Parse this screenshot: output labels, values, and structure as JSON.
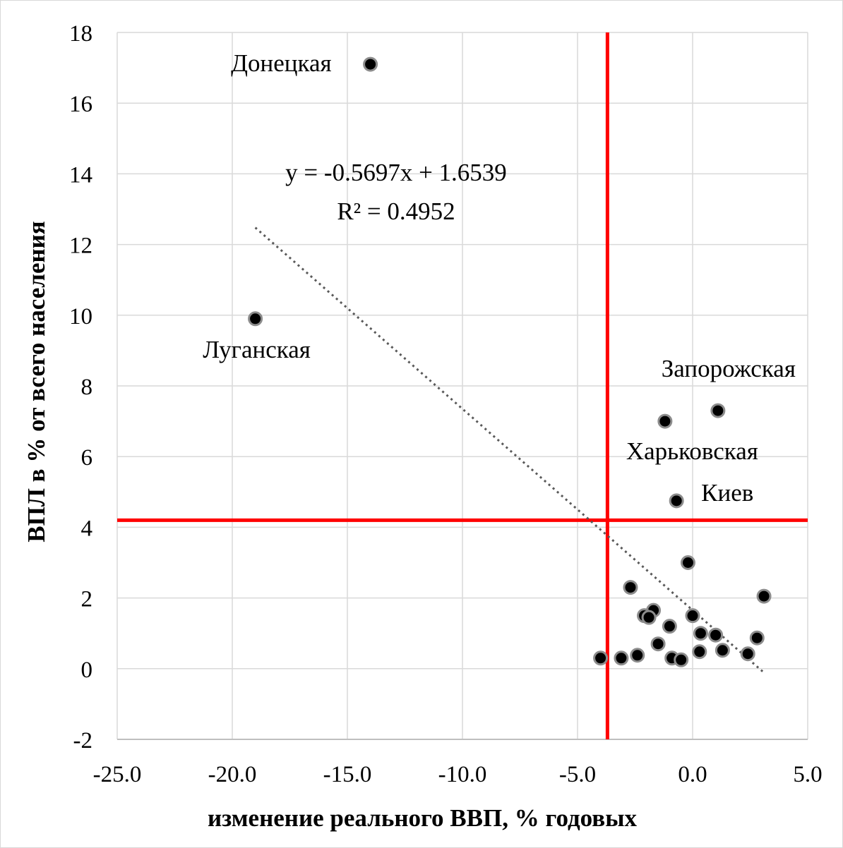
{
  "chart_data": {
    "type": "scatter",
    "xlabel": "изменение реального ВВП, % годовых",
    "ylabel": "ВПЛ в % от всего населения",
    "xlim": [
      -25,
      5
    ],
    "ylim": [
      -2,
      18
    ],
    "x_ticks": [
      "-25.0",
      "-20.0",
      "-15.0",
      "-10.0",
      "-5.0",
      "0.0",
      "5.0"
    ],
    "x_tick_values": [
      -25,
      -20,
      -15,
      -10,
      -5,
      0,
      5
    ],
    "y_ticks": [
      "-2",
      "0",
      "2",
      "4",
      "6",
      "8",
      "10",
      "12",
      "14",
      "16",
      "18"
    ],
    "y_tick_values": [
      -2,
      0,
      2,
      4,
      6,
      8,
      10,
      12,
      14,
      16,
      18
    ],
    "grid": true,
    "point_color": "#000000",
    "points": [
      {
        "x": -14.0,
        "y": 17.1,
        "label": "Донецкая"
      },
      {
        "x": -19.0,
        "y": 9.9,
        "label": "Луганская"
      },
      {
        "x": 1.1,
        "y": 7.3,
        "label": "Запорожская"
      },
      {
        "x": -1.2,
        "y": 7.0,
        "label": "Харьковская"
      },
      {
        "x": -0.7,
        "y": 4.75,
        "label": "Киев"
      },
      {
        "x": -0.2,
        "y": 3.0
      },
      {
        "x": -2.7,
        "y": 2.3
      },
      {
        "x": 3.1,
        "y": 2.05
      },
      {
        "x": -1.7,
        "y": 1.65
      },
      {
        "x": -2.1,
        "y": 1.5
      },
      {
        "x": -1.9,
        "y": 1.45
      },
      {
        "x": 0.0,
        "y": 1.5
      },
      {
        "x": -1.0,
        "y": 1.2
      },
      {
        "x": 0.35,
        "y": 1.0
      },
      {
        "x": 1.0,
        "y": 0.95
      },
      {
        "x": 2.8,
        "y": 0.87
      },
      {
        "x": -1.5,
        "y": 0.7
      },
      {
        "x": 0.3,
        "y": 0.48
      },
      {
        "x": 1.3,
        "y": 0.52
      },
      {
        "x": 2.4,
        "y": 0.42
      },
      {
        "x": -2.4,
        "y": 0.38
      },
      {
        "x": -3.1,
        "y": 0.3
      },
      {
        "x": -4.0,
        "y": 0.3
      },
      {
        "x": -0.9,
        "y": 0.3
      },
      {
        "x": -0.5,
        "y": 0.25
      }
    ],
    "trendline": {
      "type": "linear",
      "slope": -0.5697,
      "intercept": 1.6539,
      "x_range": [
        -19,
        3.1
      ],
      "color": "#595959",
      "equation": "y = -0.5697x + 1.6539",
      "r_squared": "R² = 0.4952"
    },
    "reference_lines": {
      "color": "#ff0000",
      "vertical_x": -3.7,
      "horizontal_y": 4.2
    }
  }
}
